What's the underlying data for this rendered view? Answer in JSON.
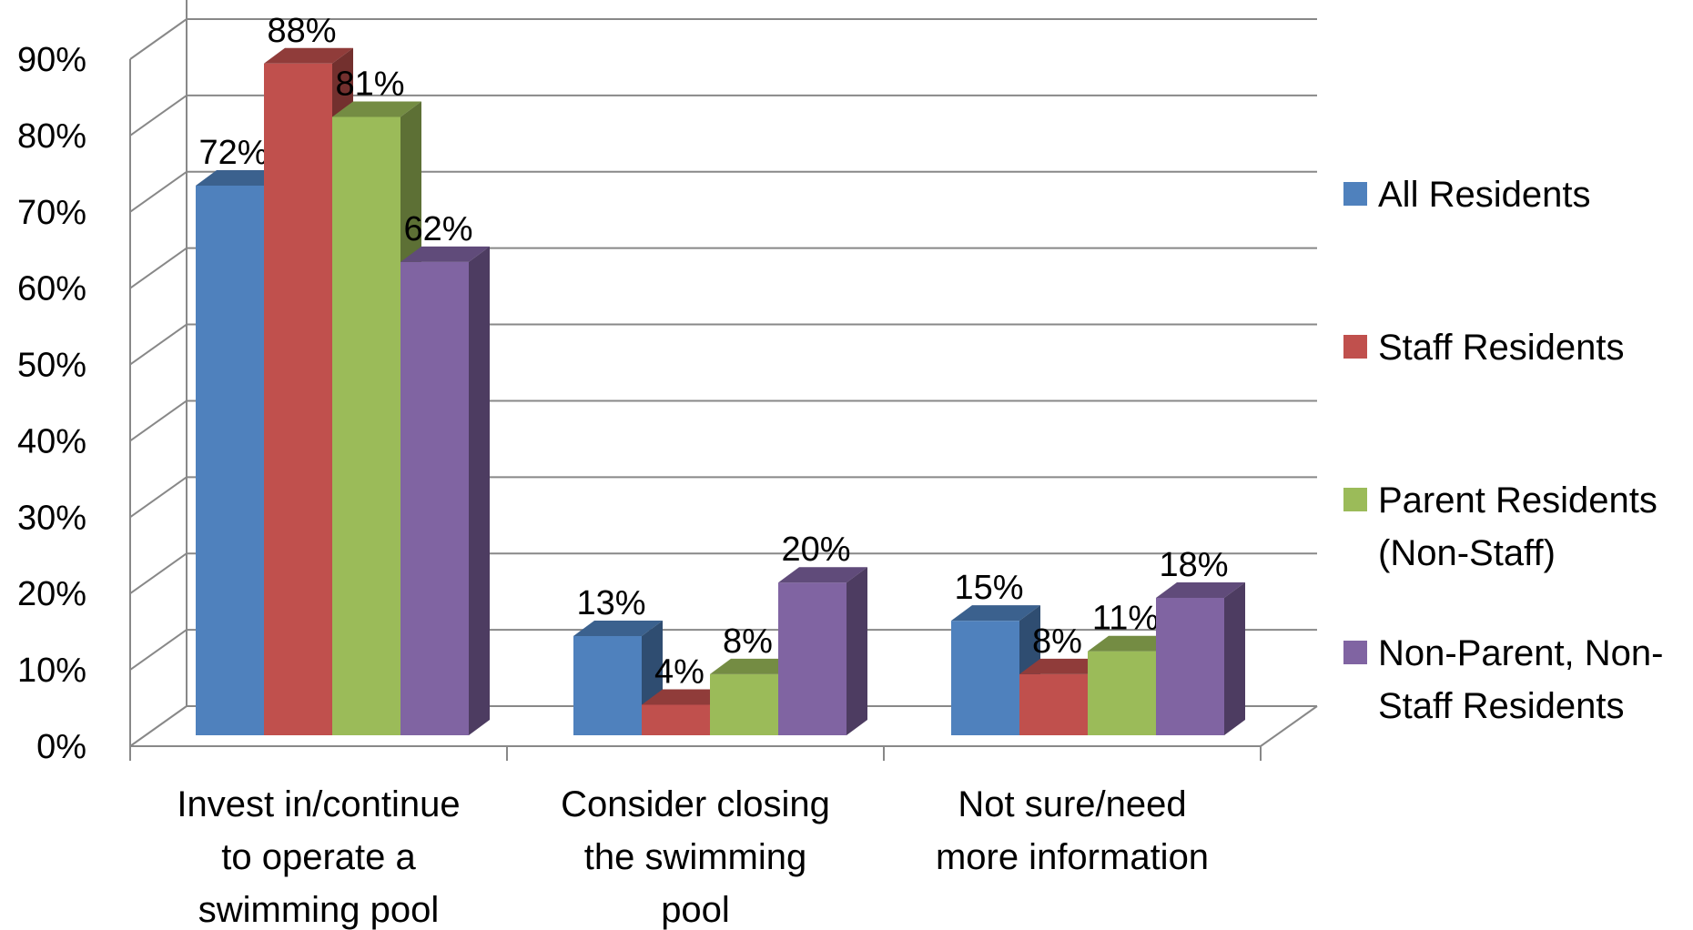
{
  "chart_data": {
    "type": "bar",
    "style": "3d-clustered-column",
    "title": "",
    "xlabel": "",
    "ylabel": "",
    "ylim": [
      0,
      90
    ],
    "yticks": [
      "0%",
      "10%",
      "20%",
      "30%",
      "40%",
      "50%",
      "60%",
      "70%",
      "80%",
      "90%"
    ],
    "grid": true,
    "legend_position": "right",
    "categories": [
      [
        "Invest in/continue",
        "to operate a",
        "swimming pool"
      ],
      [
        "Consider closing",
        "the swimming",
        "pool"
      ],
      [
        "Not sure/need",
        "more information"
      ]
    ],
    "series": [
      {
        "name": [
          "All Residents"
        ],
        "color": "#4F81BD",
        "values": [
          72,
          13,
          15
        ],
        "labels": [
          "72%",
          "13%",
          "15%"
        ]
      },
      {
        "name": [
          "Staff Residents"
        ],
        "color": "#C0504D",
        "values": [
          88,
          4,
          8
        ],
        "labels": [
          "88%",
          "4%",
          "8%"
        ]
      },
      {
        "name": [
          "Parent Residents",
          "(Non-Staff)"
        ],
        "color": "#9BBB59",
        "values": [
          81,
          8,
          11
        ],
        "labels": [
          "81%",
          "8%",
          "11%"
        ]
      },
      {
        "name": [
          "Non-Parent, Non-",
          "Staff Residents"
        ],
        "color": "#8064A2",
        "values": [
          62,
          20,
          18
        ],
        "labels": [
          "62%",
          "20%",
          "18%"
        ]
      }
    ]
  }
}
